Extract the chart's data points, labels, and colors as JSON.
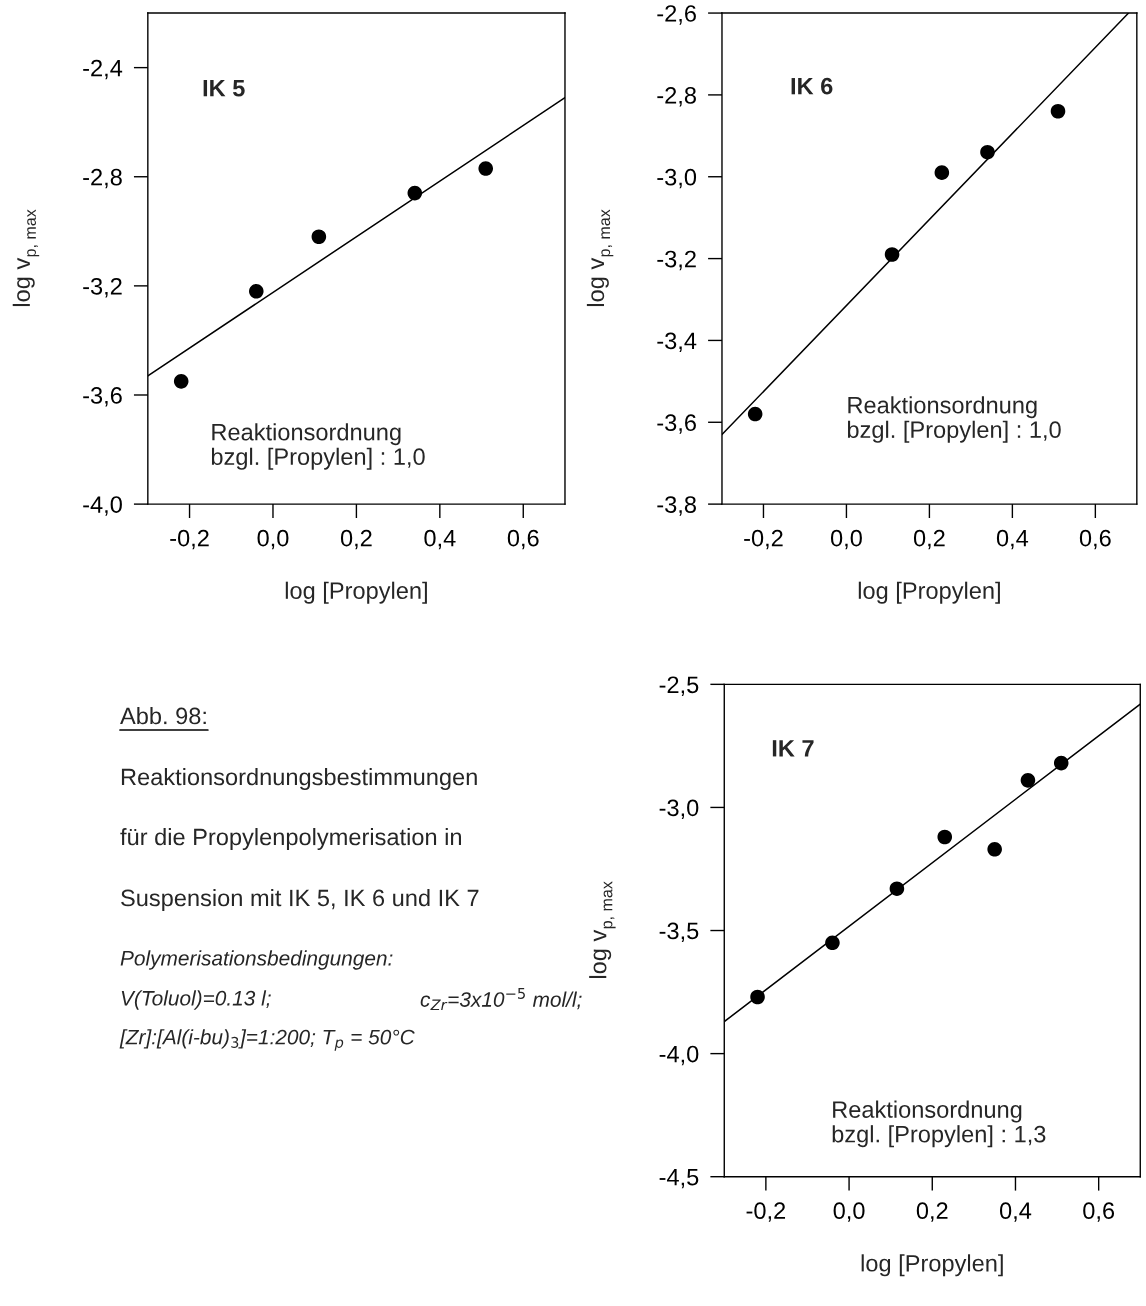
{
  "chart_data": [
    {
      "type": "scatter",
      "title": "IK 5",
      "xlabel": "log [Propylen]",
      "ylabel": "log v$_{p, max}$",
      "xlim": [
        -0.3,
        0.7
      ],
      "ylim": [
        -4.0,
        -2.2
      ],
      "xticks": [
        {
          "value": -0.2,
          "label": "-0,2"
        },
        {
          "value": 0.0,
          "label": "0,0"
        },
        {
          "value": 0.2,
          "label": "0,2"
        },
        {
          "value": 0.4,
          "label": "0,4"
        },
        {
          "value": 0.6,
          "label": "0,6"
        }
      ],
      "yticks": [
        {
          "value": -4.0,
          "label": "-4,0"
        },
        {
          "value": -3.6,
          "label": "-3,6"
        },
        {
          "value": -3.2,
          "label": "-3,2"
        },
        {
          "value": -2.8,
          "label": "-2,8"
        },
        {
          "value": -2.4,
          "label": "-2,4"
        }
      ],
      "grid": false,
      "legend": false,
      "annotations": [
        "Reaktionsordnung\nbzgl. [Propylen] : 1,0"
      ],
      "series": [
        {
          "type": "scatter",
          "marker": "circle",
          "color": "#000000",
          "x": [
            -0.22,
            -0.04,
            0.11,
            0.34,
            0.51
          ],
          "values": [
            -3.55,
            -3.22,
            -3.02,
            -2.86,
            -2.77
          ]
        },
        {
          "type": "line",
          "color": "#000000",
          "x": [
            -0.3,
            0.7
          ],
          "values": [
            -3.53,
            -2.51
          ]
        }
      ]
    },
    {
      "type": "scatter",
      "title": "IK 6",
      "xlabel": "log [Propylen]",
      "ylabel": "log v$_{p, max}$",
      "xlim": [
        -0.3,
        0.7
      ],
      "ylim": [
        -3.8,
        -2.6
      ],
      "xticks": [
        {
          "value": -0.2,
          "label": "-0,2"
        },
        {
          "value": 0.0,
          "label": "0,0"
        },
        {
          "value": 0.2,
          "label": "0,2"
        },
        {
          "value": 0.4,
          "label": "0,4"
        },
        {
          "value": 0.6,
          "label": "0,6"
        }
      ],
      "yticks": [
        {
          "value": -3.8,
          "label": "-3,8"
        },
        {
          "value": -3.6,
          "label": "-3,6"
        },
        {
          "value": -3.4,
          "label": "-3,4"
        },
        {
          "value": -3.2,
          "label": "-3,2"
        },
        {
          "value": -3.0,
          "label": "-3,0"
        },
        {
          "value": -2.8,
          "label": "-2,8"
        },
        {
          "value": -2.6,
          "label": "-2,6"
        }
      ],
      "grid": false,
      "legend": false,
      "annotations": [
        "Reaktionsordnung\nbzgl. [Propylen] : 1,0"
      ],
      "series": [
        {
          "type": "scatter",
          "marker": "circle",
          "color": "#000000",
          "x": [
            -0.22,
            0.11,
            0.23,
            0.34,
            0.51
          ],
          "values": [
            -3.58,
            -3.19,
            -2.99,
            -2.94,
            -2.84
          ]
        },
        {
          "type": "line",
          "color": "#000000",
          "x": [
            -0.3,
            0.68
          ],
          "values": [
            -3.63,
            -2.6
          ]
        }
      ]
    },
    {
      "type": "other",
      "title": "Abb. 98:",
      "annotations": [
        "Reaktionsordnungsbestimmungen",
        "für die Propylenpolymerisation in",
        "Suspension mit IK 5, IK 6 und IK 7",
        "Polymerisationsbedingungen:",
        "V(Toluol)=0.13 l;",
        "c$_{Zr}$=3x10$^{−5}$ mol/l;",
        "[Zr]:[Al(i-bu)$_{3}$]=1:200; T$_{p}$ = 50°C"
      ]
    },
    {
      "type": "scatter",
      "title": "IK 7",
      "xlabel": "log [Propylen]",
      "ylabel": "log v$_{p, max}$",
      "xlim": [
        -0.3,
        0.7
      ],
      "ylim": [
        -4.5,
        -2.5
      ],
      "xticks": [
        {
          "value": -0.2,
          "label": "-0,2"
        },
        {
          "value": 0.0,
          "label": "0,0"
        },
        {
          "value": 0.2,
          "label": "0,2"
        },
        {
          "value": 0.4,
          "label": "0,4"
        },
        {
          "value": 0.6,
          "label": "0,6"
        }
      ],
      "yticks": [
        {
          "value": -4.5,
          "label": "-4,5"
        },
        {
          "value": -4.0,
          "label": "-4,0"
        },
        {
          "value": -3.5,
          "label": "-3,5"
        },
        {
          "value": -3.0,
          "label": "-3,0"
        },
        {
          "value": -2.5,
          "label": "-2,5"
        }
      ],
      "grid": false,
      "legend": false,
      "annotations": [
        "Reaktionsordnung\nbzgl. [Propylen] : 1,3"
      ],
      "series": [
        {
          "type": "scatter",
          "marker": "circle",
          "color": "#000000",
          "x": [
            -0.22,
            -0.04,
            0.115,
            0.23,
            0.35,
            0.43,
            0.51
          ],
          "values": [
            -3.77,
            -3.55,
            -3.33,
            -3.12,
            -3.17,
            -2.89,
            -2.82
          ]
        },
        {
          "type": "line",
          "color": "#000000",
          "x": [
            -0.3,
            0.7
          ],
          "values": [
            -3.87,
            -2.58
          ]
        }
      ]
    }
  ]
}
